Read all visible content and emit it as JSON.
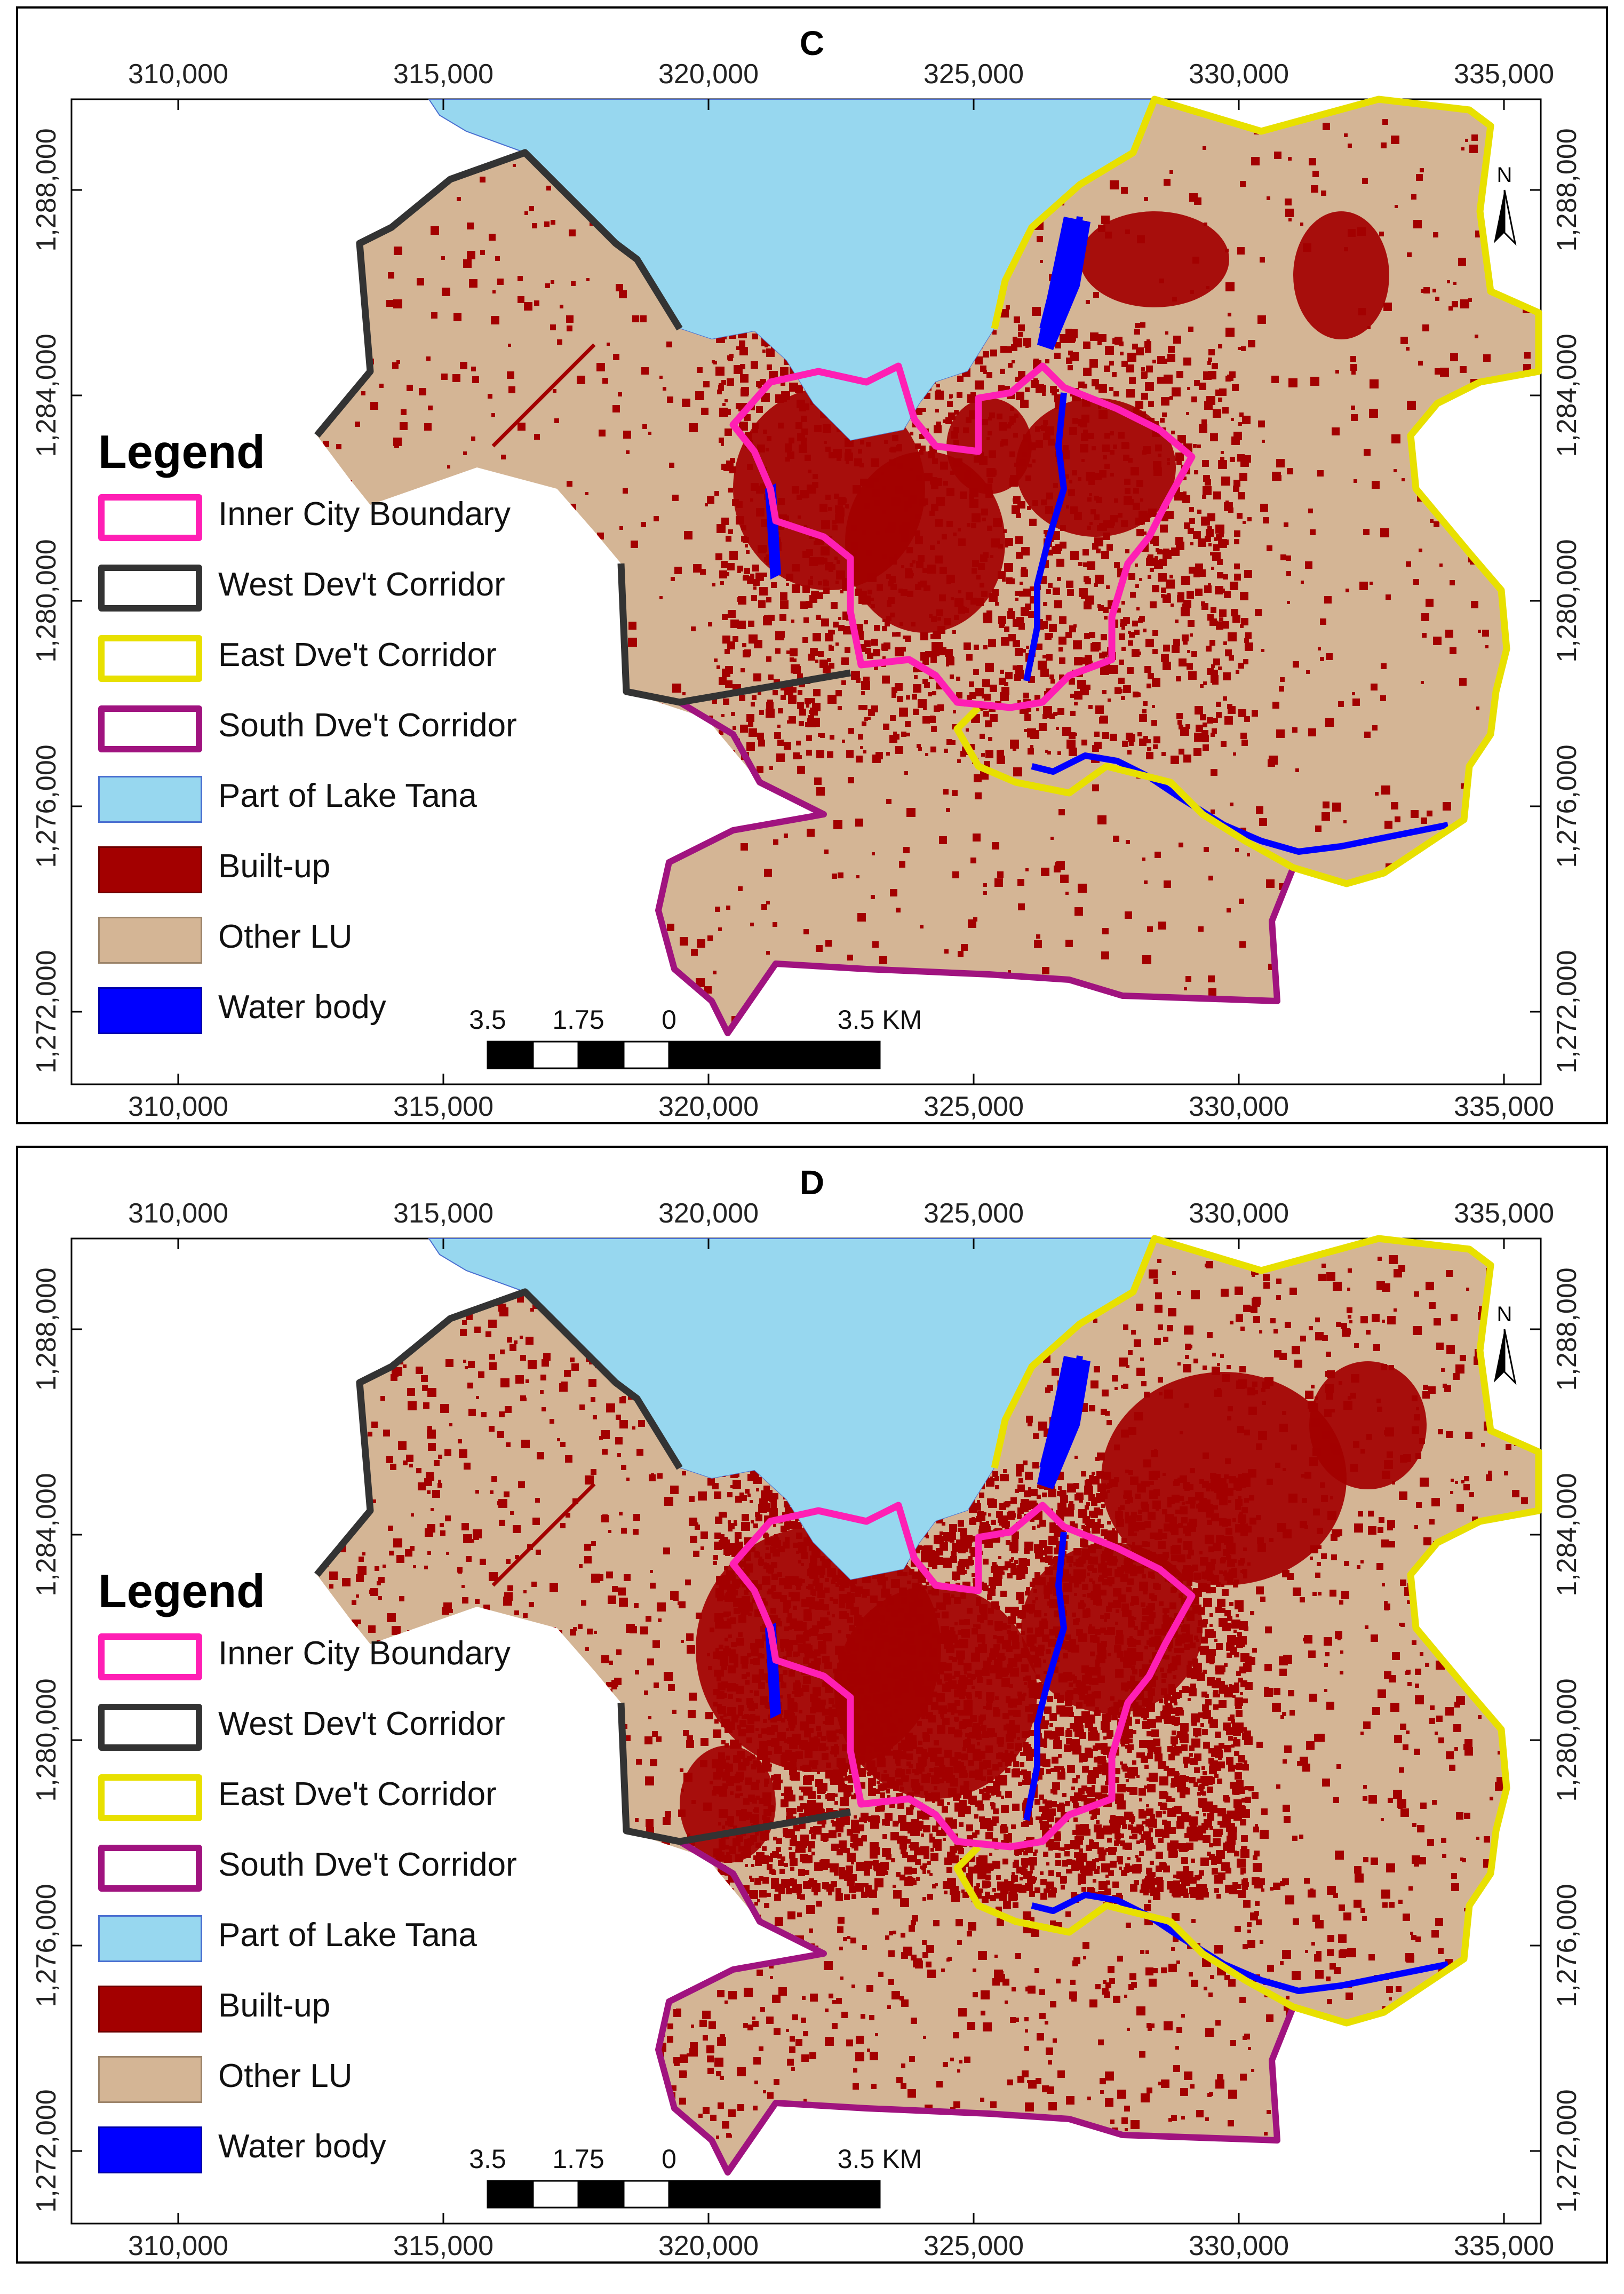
{
  "panels": [
    {
      "label": "C"
    },
    {
      "label": "D"
    }
  ],
  "axes": {
    "x_ticks": [
      "310,000",
      "315,000",
      "320,000",
      "325,000",
      "330,000",
      "335,000"
    ],
    "y_ticks": [
      "1,288,000",
      "1,284,000",
      "1,280,000",
      "1,276,000",
      "1,272,000"
    ]
  },
  "legend": {
    "title": "Legend",
    "items": [
      {
        "label": "Inner City Boundary",
        "fill": "#ffffff",
        "stroke": "#ff1fb4"
      },
      {
        "label": "West Dev't Corridor",
        "fill": "#ffffff",
        "stroke": "#333333"
      },
      {
        "label": "East Dve't Corridor",
        "fill": "#ffffff",
        "stroke": "#e8e000"
      },
      {
        "label": "South Dve't Corridor",
        "fill": "#ffffff",
        "stroke": "#a0137f"
      },
      {
        "label": "Part of Lake Tana",
        "fill": "#97d7ef",
        "stroke": "#4a6fd0"
      },
      {
        "label": "Built-up",
        "fill": "#a30000",
        "stroke": "#6f0000"
      },
      {
        "label": "Other LU",
        "fill": "#d4b595",
        "stroke": "#9c846a"
      },
      {
        "label": "Water body",
        "fill": "#0000ff",
        "stroke": "#0000aa"
      }
    ]
  },
  "scalebar": {
    "labels": [
      "3.5",
      "1.75",
      "0",
      "3.5 KM"
    ]
  },
  "north_arrow": {
    "label": "N"
  },
  "colors": {
    "lake": "#97d7ef",
    "land": "#d4b595",
    "builtup": "#a30000",
    "water": "#0000ff",
    "inner_city": "#ff1fb4",
    "west": "#333333",
    "east": "#e8e000",
    "south": "#a0137f"
  }
}
